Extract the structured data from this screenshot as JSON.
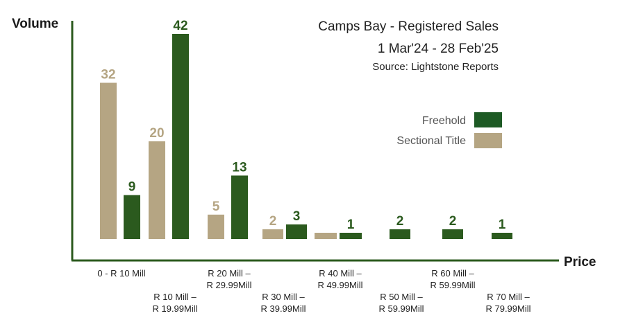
{
  "chart_data": {
    "type": "bar",
    "title": "Camps Bay  - Registered Sales",
    "subtitle": "1 Mar'24 - 28 Feb'25",
    "source": "Source: Lightstone Reports",
    "ylabel": "Volume",
    "xlabel": "Price",
    "ylim": [
      0,
      45
    ],
    "grid": false,
    "legend_position": "right",
    "categories": [
      [
        "0 - R 10 Mill"
      ],
      [
        "R 10 Mill –",
        "R 19.99Mill"
      ],
      [
        "R 20 Mill –",
        "R 29.99Mill"
      ],
      [
        "R 30 Mill –",
        "R 39.99Mill"
      ],
      [
        "R 40 Mill –",
        "R 49.99Mill"
      ],
      [
        "R 50 Mill –",
        "R 59.99Mill"
      ],
      [
        "R 60 Mill –",
        "R 59.99Mill"
      ],
      [
        "R 70 Mill –",
        "R 79.99Mill"
      ]
    ],
    "series": [
      {
        "name": "Sectional Title",
        "color": "#b5a583",
        "values": [
          32,
          20,
          5,
          2,
          0.8,
          null,
          null,
          null
        ],
        "labels": [
          "32",
          "20",
          "5",
          "2",
          "",
          "",
          "",
          ""
        ]
      },
      {
        "name": "Freehold",
        "color": "#2b5a1e",
        "values": [
          9,
          42,
          13,
          3,
          1,
          2,
          2,
          1
        ],
        "labels": [
          "9",
          "42",
          "13",
          "3",
          "1",
          "2",
          "2",
          "1"
        ]
      }
    ],
    "legend": [
      {
        "label": "Freehold",
        "color": "#1d5a24"
      },
      {
        "label": "Sectional Title",
        "color": "#b5a583"
      }
    ]
  },
  "colors": {
    "axis": "#2b5a1e",
    "sectional_label": "#b5a583",
    "freehold_label": "#2b5a1e"
  }
}
